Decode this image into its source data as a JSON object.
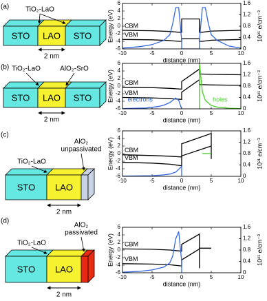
{
  "diagrams": [
    {
      "label": "(a)",
      "blocks": [
        "STO",
        "LAO",
        "STO"
      ],
      "callouts": [
        [
          "TiO₂-LaO"
        ]
      ],
      "scale": "2 nm"
    },
    {
      "label": "(b)",
      "blocks": [
        "STO",
        "LAO",
        "STO"
      ],
      "callouts": [
        [
          "TiO₂-LaO"
        ],
        [
          "AlO₂-SrO"
        ]
      ],
      "scale": "2 nm"
    },
    {
      "label": "(c)",
      "blocks": [
        "STO",
        "LAO"
      ],
      "callouts": [
        [
          "TiO₂-LaO"
        ],
        [
          "AlO₂",
          "unpassivated"
        ]
      ],
      "scale": "2 nm"
    },
    {
      "label": "(d)",
      "blocks": [
        "STO",
        "LAO"
      ],
      "callouts": [
        [
          "TiO₂-LaO"
        ],
        [
          "AlO₂",
          "passivated"
        ]
      ],
      "scale": "2 nm"
    }
  ],
  "chart_data": [
    {
      "type": "line",
      "xlabel": "distance (nm)",
      "ylabel": "Energy (eV)",
      "y2label": "10²¹ e/cm⁻³",
      "xlim": [
        -10,
        10
      ],
      "xticks": [
        -10,
        -5,
        0,
        5,
        10
      ],
      "ylim": [
        -6,
        6
      ],
      "yticks": [
        -6,
        -4,
        -2,
        0,
        2,
        4,
        6
      ],
      "y2lim": [
        0,
        1.6
      ],
      "y2ticks": [
        0,
        0.4,
        0.8,
        1.2,
        1.6
      ],
      "series": [
        {
          "name": "CBM",
          "color": "#000000",
          "x": [
            -10,
            -5,
            -2,
            -0.5,
            0,
            0,
            3,
            3,
            3.5,
            5,
            10
          ],
          "values": [
            -1.1,
            -1.2,
            -1.4,
            -1.6,
            -1.6,
            1.9,
            1.9,
            -1.6,
            -1.6,
            -1.3,
            -1.1
          ]
        },
        {
          "name": "VBM",
          "color": "#000000",
          "x": [
            -10,
            -5,
            -2,
            -0.5,
            0,
            0,
            3,
            3,
            3.5,
            5,
            10
          ],
          "values": [
            -3.5,
            -3.6,
            -3.8,
            -4.0,
            -4.0,
            -3.3,
            -3.3,
            -4.0,
            -4.0,
            -3.7,
            -3.5
          ]
        },
        {
          "color": "#3366dd",
          "axis": "y2",
          "x": [
            -10,
            -7,
            -5,
            -3,
            -2,
            -1.5,
            -1,
            -0.5,
            0,
            0,
            3,
            3,
            3.5,
            4,
            4.5,
            5,
            6,
            8,
            10
          ],
          "values": [
            0.03,
            0.08,
            0.15,
            0.3,
            0.5,
            0.9,
            1.45,
            1.45,
            0.3,
            0,
            0,
            0.3,
            1.45,
            1.45,
            0.9,
            0.5,
            0.3,
            0.1,
            0.03
          ]
        }
      ]
    },
    {
      "type": "line",
      "xlabel": "distance (nm)",
      "ylabel": "Energy (eV)",
      "y2label": "10²¹ e/cm⁻³",
      "xlim": [
        -10,
        10
      ],
      "xticks": [
        -10,
        -5,
        0,
        5,
        10
      ],
      "ylim": [
        -6,
        6
      ],
      "yticks": [
        -6,
        -4,
        -2,
        0,
        2,
        4,
        6
      ],
      "y2lim": [
        0,
        1.6
      ],
      "y2ticks": [
        0,
        0.4,
        0.8,
        1.2,
        1.6
      ],
      "series": [
        {
          "name": "CBM",
          "color": "#000000",
          "x": [
            -10,
            -5,
            -2,
            0,
            0,
            3,
            3,
            5,
            10
          ],
          "values": [
            -0.3,
            -0.4,
            -0.6,
            -0.8,
            1.2,
            4.5,
            3.2,
            3.1,
            3.0
          ]
        },
        {
          "name": "VBM",
          "color": "#000000",
          "x": [
            -10,
            -5,
            -2,
            0,
            0,
            3,
            3,
            5,
            10
          ],
          "values": [
            -3.0,
            -3.1,
            -3.3,
            -3.5,
            -1.6,
            1.7,
            0.4,
            0.3,
            0.2
          ]
        },
        {
          "name": "electrons",
          "color": "#3366dd",
          "axis": "y2",
          "x": [
            -10,
            -6,
            -4,
            -3,
            -2,
            -1.5,
            -1,
            -0.5,
            0
          ],
          "values": [
            0.01,
            0.03,
            0.08,
            0.13,
            0.22,
            0.3,
            0.38,
            0.3,
            0
          ]
        },
        {
          "name": "holes",
          "color": "#44cc22",
          "axis": "y2",
          "x": [
            3,
            3,
            3.2,
            3.5,
            4,
            5,
            6,
            8,
            10
          ],
          "values": [
            0,
            1.6,
            1.2,
            0.6,
            0.3,
            0.12,
            0.06,
            0.02,
            0.01
          ]
        }
      ]
    },
    {
      "type": "line",
      "xlabel": "distance (nm)",
      "ylabel": "Energy (eV)",
      "y2label": "10²¹ e/cm⁻³",
      "xlim": [
        -10,
        10
      ],
      "xticks": [
        -10,
        -5,
        0,
        5,
        10
      ],
      "ylim": [
        -6,
        6
      ],
      "yticks": [
        -6,
        -4,
        -2,
        0,
        2,
        4,
        6
      ],
      "y2lim": [
        0,
        1.6
      ],
      "y2ticks": [
        0,
        0.4,
        0.8,
        1.2,
        1.6
      ],
      "series": [
        {
          "name": "CBM",
          "color": "#000000",
          "x": [
            -10,
            -5,
            -2,
            0,
            0,
            5,
            5
          ],
          "values": [
            -0.3,
            -0.5,
            -0.7,
            -0.9,
            2.6,
            5.3,
            -1.4
          ]
        },
        {
          "name": "VBM",
          "color": "#000000",
          "x": [
            -10,
            -5,
            -2,
            0,
            0,
            5
          ],
          "values": [
            -2.3,
            -2.5,
            -2.8,
            -3.2,
            -0.6,
            2.0
          ]
        },
        {
          "color": "#3366dd",
          "axis": "y2",
          "x": [
            -10,
            -5,
            -3,
            -2,
            -1,
            -0.5,
            0,
            0
          ],
          "values": [
            0.01,
            0.02,
            0.05,
            0.08,
            0.15,
            0.25,
            0.35,
            0
          ]
        },
        {
          "color": "#44cc22",
          "axis": "y2",
          "x": [
            3.5,
            5
          ],
          "values": [
            0.8,
            0.8
          ]
        }
      ]
    },
    {
      "type": "line",
      "xlabel": "distance (nm)",
      "ylabel": "Energy (eV)",
      "y2label": "10²¹ e/cm⁻³",
      "xlim": [
        -10,
        10
      ],
      "xticks": [
        -10,
        -5,
        0,
        5,
        10
      ],
      "ylim": [
        -6,
        6
      ],
      "yticks": [
        -6,
        -4,
        -2,
        0,
        2,
        4,
        6
      ],
      "y2lim": [
        0,
        1.6
      ],
      "y2ticks": [
        0,
        0.4,
        0.8,
        1.2,
        1.6
      ],
      "series": [
        {
          "name": "CBM",
          "color": "#000000",
          "x": [
            -10,
            -5,
            -2,
            0,
            0,
            3,
            3,
            5
          ],
          "values": [
            0.3,
            0.2,
            0,
            -0.3,
            1.5,
            4.2,
            0.5,
            0.5
          ]
        },
        {
          "name": "VBM",
          "color": "#000000",
          "x": [
            -10,
            -5,
            -2,
            0,
            0,
            3,
            3
          ],
          "values": [
            -3.6,
            -3.7,
            -3.9,
            -4.2,
            -2.6,
            0.3,
            -4.8
          ]
        },
        {
          "color": "#3366dd",
          "axis": "y2",
          "x": [
            -10,
            -7,
            -5,
            -3,
            -2,
            -1.5,
            -1,
            -0.5,
            0,
            0
          ],
          "values": [
            0.02,
            0.05,
            0.1,
            0.2,
            0.35,
            0.6,
            1.2,
            1.45,
            0.4,
            0
          ]
        }
      ]
    }
  ]
}
